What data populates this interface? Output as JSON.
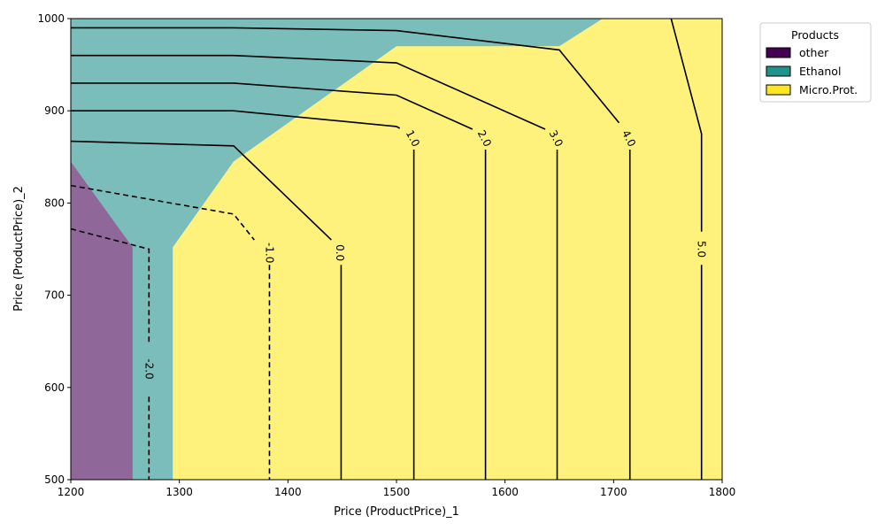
{
  "chart_data": {
    "type": "contour",
    "xlabel": "Price (ProductPrice)_1",
    "ylabel": "Price (ProductPrice)_2",
    "xlim": [
      1200,
      1800
    ],
    "ylim": [
      500,
      1000
    ],
    "xticks": [
      1200,
      1300,
      1400,
      1500,
      1600,
      1700,
      1800
    ],
    "yticks": [
      500,
      600,
      700,
      800,
      900,
      1000
    ],
    "grid": false,
    "legend": {
      "title": "Products",
      "placement": "outside-top-right",
      "entries": [
        {
          "name": "other",
          "color": "#440154"
        },
        {
          "name": "Ethanol",
          "color": "#21918c"
        },
        {
          "name": "Micro.Prot.",
          "color": "#fde725"
        }
      ]
    },
    "regions": [
      {
        "product": "other",
        "color": "#440154",
        "polygon": [
          [
            1200,
            500
          ],
          [
            1257,
            500
          ],
          [
            1257,
            752
          ],
          [
            1200,
            845
          ]
        ]
      },
      {
        "product": "Ethanol",
        "color": "#21918c",
        "polygon": [
          [
            1257,
            500
          ],
          [
            1294,
            500
          ],
          [
            1294,
            752
          ],
          [
            1350,
            845
          ],
          [
            1500,
            970
          ],
          [
            1650,
            970
          ],
          [
            1690,
            1000
          ],
          [
            1200,
            1000
          ],
          [
            1200,
            845
          ],
          [
            1257,
            752
          ]
        ]
      },
      {
        "product": "Micro.Prot.",
        "color": "#fde725",
        "polygon": [
          [
            1294,
            500
          ],
          [
            1800,
            500
          ],
          [
            1800,
            1000
          ],
          [
            1690,
            1000
          ],
          [
            1650,
            970
          ],
          [
            1500,
            970
          ],
          [
            1350,
            845
          ],
          [
            1294,
            752
          ]
        ]
      }
    ],
    "region_opacity": 0.6,
    "contours": [
      {
        "level": "-2.0",
        "dashed": true,
        "segments": [
          [
            [
              1200,
              819
            ],
            [
              1350,
              788
            ],
            [
              1369,
              760
            ]
          ],
          [
            [
              1200,
              772
            ],
            [
              1272,
              750
            ],
            [
              1272,
              648
            ]
          ],
          [
            [
              1272,
              590
            ],
            [
              1272,
              500
            ]
          ]
        ],
        "label_at": [
          1272,
          620
        ]
      },
      {
        "level": "-1.0",
        "dashed": true,
        "segments": [
          [
            [
              1383,
              733
            ],
            [
              1383,
              500
            ]
          ]
        ],
        "label_at": [
          1383,
          746
        ]
      },
      {
        "level": "0.0",
        "dashed": false,
        "segments": [
          [
            [
              1200,
              867
            ],
            [
              1350,
              862
            ],
            [
              1440,
              760
            ]
          ],
          [
            [
              1449,
              733
            ],
            [
              1449,
              500
            ]
          ]
        ],
        "label_at": [
          1448,
          746
        ]
      },
      {
        "level": "1.0",
        "dashed": false,
        "segments": [
          [
            [
              1200,
              900
            ],
            [
              1350,
              900
            ],
            [
              1500,
              883
            ],
            [
              1503,
              881
            ]
          ],
          [
            [
              1516,
              858
            ],
            [
              1516,
              500
            ]
          ]
        ],
        "label_at": [
          1515,
          870
        ]
      },
      {
        "level": "2.0",
        "dashed": false,
        "segments": [
          [
            [
              1200,
              930
            ],
            [
              1350,
              930
            ],
            [
              1500,
              917
            ],
            [
              1570,
              880
            ]
          ],
          [
            [
              1582,
              858
            ],
            [
              1582,
              500
            ]
          ]
        ],
        "label_at": [
          1581,
          870
        ]
      },
      {
        "level": "3.0",
        "dashed": false,
        "segments": [
          [
            [
              1200,
              960
            ],
            [
              1350,
              960
            ],
            [
              1500,
              952
            ],
            [
              1637,
              880
            ]
          ],
          [
            [
              1648,
              858
            ],
            [
              1648,
              500
            ]
          ]
        ],
        "label_at": [
          1647,
          870
        ]
      },
      {
        "level": "4.0",
        "dashed": false,
        "segments": [
          [
            [
              1200,
              990
            ],
            [
              1350,
              990
            ],
            [
              1500,
              987
            ],
            [
              1650,
              966
            ],
            [
              1705,
              887
            ]
          ],
          [
            [
              1715,
              858
            ],
            [
              1715,
              500
            ]
          ]
        ],
        "label_at": [
          1714,
          870
        ]
      },
      {
        "level": "5.0",
        "dashed": false,
        "segments": [
          [
            [
              1753,
              1000
            ],
            [
              1781,
              875
            ],
            [
              1781,
              769
            ]
          ],
          [
            [
              1781,
              733
            ],
            [
              1781,
              500
            ]
          ]
        ],
        "label_at": [
          1781,
          750
        ]
      }
    ]
  }
}
